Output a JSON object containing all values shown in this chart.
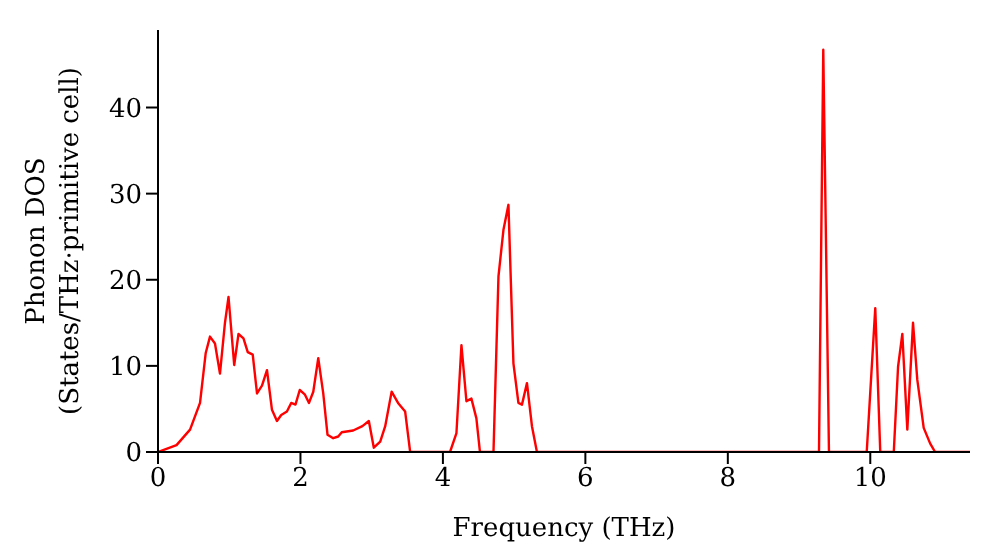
{
  "chart_data": {
    "type": "line",
    "xlabel": "Frequency (THz)",
    "ylabel": "Phonon DOS\n(States/THz·primitive cell)",
    "xlim": [
      0,
      11.4
    ],
    "xticks": [
      0,
      2,
      4,
      6,
      8,
      10
    ],
    "ylim": [
      0,
      49
    ],
    "yticks": [
      0,
      10,
      20,
      30,
      40
    ],
    "marker": "none",
    "line_style": "solid",
    "series": [
      {
        "color": "#ff0000",
        "x": [
          0,
          0.26,
          0.45,
          0.59,
          0.67,
          0.73,
          0.8,
          0.87,
          0.94,
          0.99,
          1.07,
          1.13,
          1.2,
          1.26,
          1.33,
          1.39,
          1.46,
          1.53,
          1.6,
          1.67,
          1.73,
          1.81,
          1.87,
          1.93,
          1.99,
          2.06,
          2.12,
          2.18,
          2.25,
          2.32,
          2.38,
          2.46,
          2.53,
          2.58,
          2.74,
          2.87,
          2.96,
          3.03,
          3.12,
          3.19,
          3.28,
          3.37,
          3.47,
          3.54,
          4.1,
          4.19,
          4.26,
          4.33,
          4.4,
          4.47,
          4.52,
          4.71,
          4.78,
          4.85,
          4.92,
          4.99,
          5.06,
          5.11,
          5.18,
          5.25,
          5.32,
          9.28,
          9.34,
          9.42,
          9.95,
          10.07,
          10.14,
          10.33,
          10.39,
          10.45,
          10.52,
          10.6,
          10.66,
          10.75,
          10.84,
          10.91,
          11.4
        ],
        "values": [
          0,
          0.8,
          2.6,
          5.7,
          11.5,
          13.4,
          12.6,
          9.1,
          15,
          18,
          10.1,
          13.7,
          13.2,
          11.6,
          11.3,
          6.8,
          7.7,
          9.5,
          4.9,
          3.6,
          4.3,
          4.7,
          5.7,
          5.5,
          7.2,
          6.7,
          5.7,
          7,
          10.9,
          6.8,
          2,
          1.6,
          1.8,
          2.3,
          2.5,
          3,
          3.6,
          0.5,
          1.2,
          3,
          7,
          5.7,
          4.7,
          0,
          0,
          2.2,
          12.4,
          5.9,
          6.2,
          3.9,
          0,
          0,
          20.4,
          25.8,
          28.7,
          10.3,
          5.7,
          5.5,
          8,
          3,
          0,
          0,
          46.7,
          0,
          0,
          16.7,
          0,
          0,
          9.9,
          13.7,
          2.6,
          15,
          8.4,
          2.8,
          1,
          0,
          0
        ]
      }
    ]
  }
}
